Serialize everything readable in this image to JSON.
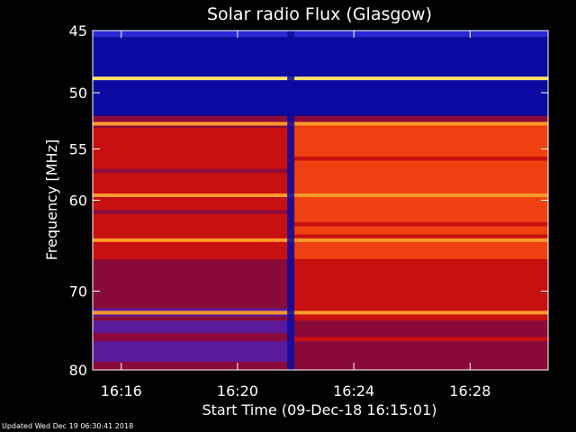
{
  "chart_data": {
    "type": "heatmap",
    "title": "Solar radio Flux (Glasgow)",
    "xlabel": "Start Time (09-Dec-18 16:15:01)",
    "ylabel": "Frequency [MHz]",
    "x_unit": "time (UT)",
    "xlim": [
      "16:15:01",
      "16:30:41"
    ],
    "ylim_mhz": [
      45,
      80
    ],
    "y_scale": "log",
    "x_ticks": [
      "16:16",
      "16:20",
      "16:24",
      "16:28"
    ],
    "y_ticks": [
      45,
      50,
      55,
      60,
      70,
      80
    ],
    "colormap": [
      "#0a0aa0",
      "#2a2ad8",
      "#5a1a9a",
      "#8a0a3a",
      "#c81010",
      "#ee4010",
      "#ff9a2a",
      "#ffe070"
    ],
    "bright_emission_lines_mhz": [
      48.8,
      52.7,
      59.5,
      64.2,
      72.6
    ],
    "quiet_band_mhz": [
      45.5,
      52.0
    ],
    "dark_gap_time": "16:21:50",
    "intensity_step_time": "16:21:55"
  },
  "footer": {
    "updated": "Updated Wed Dec 19 06:30:41 2018"
  }
}
